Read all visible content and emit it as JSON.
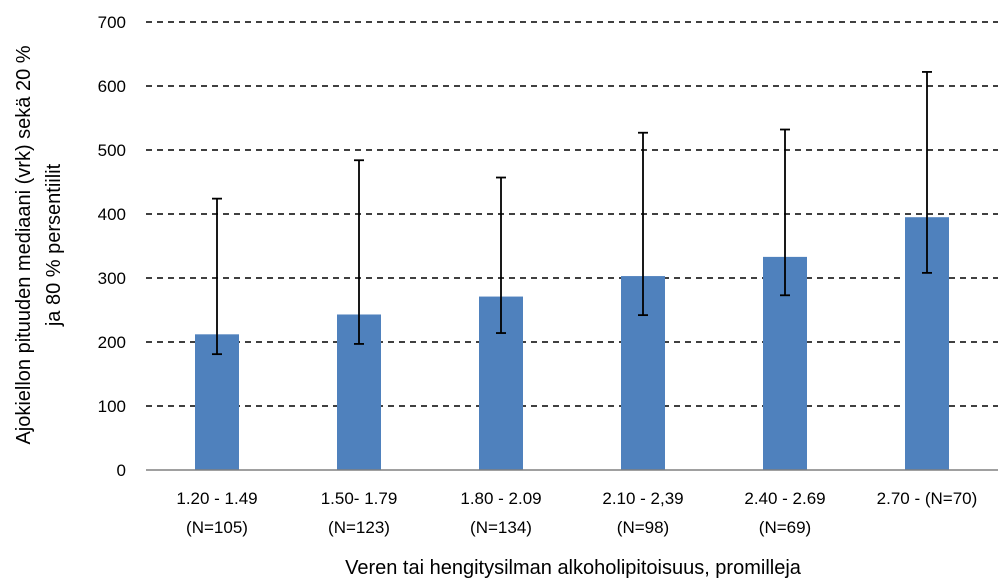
{
  "chart_data": {
    "type": "bar",
    "categories": [
      [
        "1.20 - 1.49",
        "(N=105)"
      ],
      [
        "1.50- 1.79",
        "(N=123)"
      ],
      [
        "1.80 - 2.09",
        "(N=134)"
      ],
      [
        "2.10 - 2,39",
        "(N=98)"
      ],
      [
        "2.40 - 2.69",
        "(N=69)"
      ],
      [
        "2.70 - (N=70)",
        ""
      ]
    ],
    "values": [
      212,
      243,
      271,
      303,
      333,
      395
    ],
    "error_low": [
      181,
      197,
      214,
      242,
      273,
      308
    ],
    "error_high": [
      424,
      484,
      457,
      527,
      532,
      622
    ],
    "xlabel": "Veren tai hengitysilman alkoholipitoisuus, promilleja",
    "ylabel": [
      "Ajokiellon pituuden mediaani (vrk) sekä 20 %",
      "ja 80 % persentiilit"
    ],
    "ylim": [
      0,
      700
    ],
    "yticks": [
      0,
      100,
      200,
      300,
      400,
      500,
      600,
      700
    ],
    "grid": true,
    "colors": {
      "bar": "#4f81bd",
      "grid": "#000000",
      "error_bar": "#000000"
    }
  }
}
